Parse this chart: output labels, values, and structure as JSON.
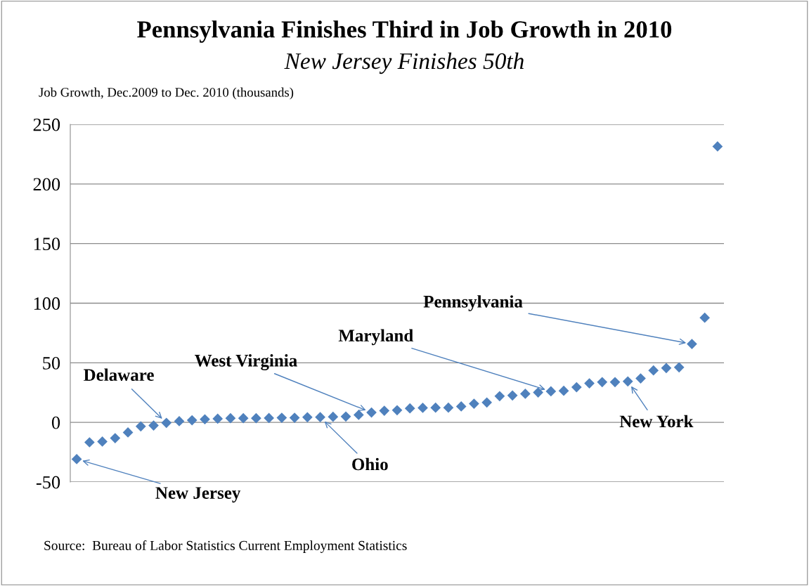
{
  "chart_data": {
    "type": "scatter",
    "title": "Pennsylvania Finishes Third in Job Growth in 2010",
    "subtitle": "New Jersey Finishes 50th",
    "ylabel": "Job Growth, Dec.2009 to Dec. 2010 (thousands)",
    "categories": [
      null,
      null,
      null,
      null,
      null,
      null,
      null,
      null,
      null,
      null,
      null,
      null,
      null,
      null,
      null,
      null,
      null,
      null,
      null,
      null,
      null,
      null,
      null,
      null,
      null,
      null,
      null,
      null,
      null,
      null,
      null,
      null,
      null,
      null,
      null,
      null,
      null,
      null,
      null,
      null,
      null,
      null,
      null,
      null,
      null,
      null,
      null,
      null,
      null,
      null,
      null
    ],
    "series": [
      {
        "color": "#4f81bd",
        "values": [
          -30.8,
          -16.7,
          -16.1,
          -13.2,
          -8.4,
          -3.3,
          -2.6,
          -0.4,
          1.0,
          1.8,
          2.6,
          3.1,
          3.5,
          3.5,
          3.5,
          3.7,
          3.9,
          3.9,
          4.3,
          4.4,
          4.7,
          4.9,
          6.3,
          8.3,
          9.8,
          10.2,
          11.8,
          12.2,
          12.4,
          12.4,
          13.4,
          15.7,
          16.7,
          22.0,
          22.6,
          24.0,
          25.1,
          26.1,
          26.5,
          29.5,
          32.8,
          33.8,
          33.8,
          34.4,
          36.9,
          43.6,
          45.6,
          46.2,
          65.8,
          87.8,
          231.5
        ]
      }
    ],
    "ylim": [
      -50,
      250
    ],
    "yticks": [
      -50,
      0,
      50,
      100,
      150,
      200,
      250
    ],
    "grid": "y",
    "marker": "diamond",
    "tick_labels": "y",
    "annotations": [
      "Pennsylvania",
      "Maryland",
      "West Virginia",
      "Delaware",
      "New York",
      "Ohio",
      "New Jersey",
      "Source:  Bureau of Labor Statistics Current Employment Statistics"
    ]
  }
}
